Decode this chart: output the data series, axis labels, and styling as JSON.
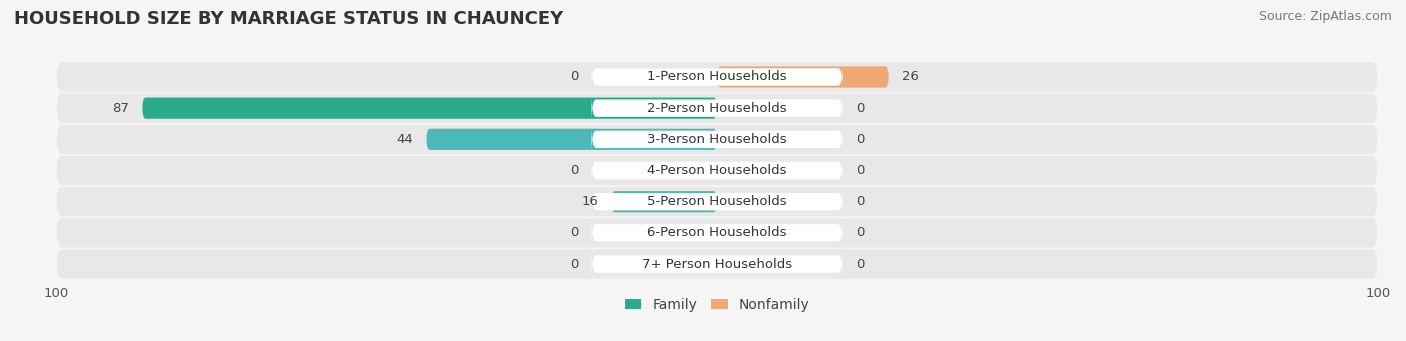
{
  "title": "HOUSEHOLD SIZE BY MARRIAGE STATUS IN CHAUNCEY",
  "source": "Source: ZipAtlas.com",
  "categories": [
    "7+ Person Households",
    "6-Person Households",
    "5-Person Households",
    "4-Person Households",
    "3-Person Households",
    "2-Person Households",
    "1-Person Households"
  ],
  "family_values": [
    0,
    0,
    16,
    0,
    44,
    87,
    0
  ],
  "nonfamily_values": [
    0,
    0,
    0,
    0,
    0,
    0,
    26
  ],
  "family_color": "#4db8b8",
  "nonfamily_color": "#f0a875",
  "family_color_2person": "#2aaa8a",
  "axis_max": 100,
  "bg_color": "#f0f0f0",
  "bar_bg_color": "#e0e0e0",
  "title_fontsize": 13,
  "source_fontsize": 9,
  "label_fontsize": 9.5,
  "tick_fontsize": 9.5,
  "legend_fontsize": 10
}
